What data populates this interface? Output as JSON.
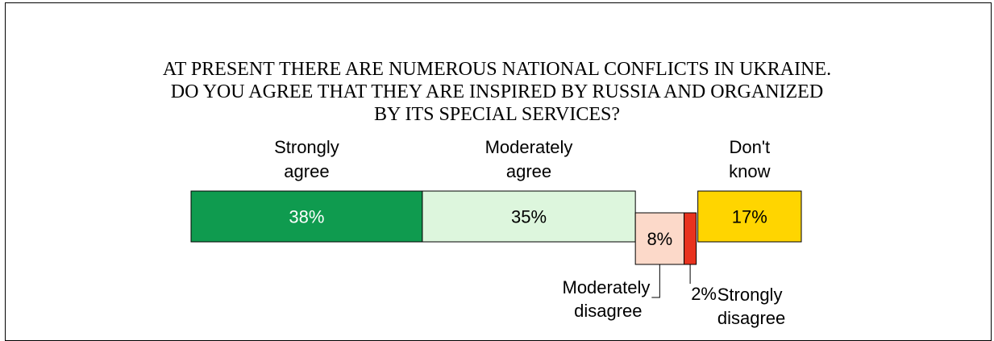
{
  "title_lines": [
    "AT PRESENT THERE ARE NUMEROUS NATIONAL CONFLICTS IN UKRAINE.",
    "DO YOU AGREE THAT THEY ARE INSPIRED BY RUSSIA AND ORGANIZED",
    "BY ITS SPECIAL SERVICES?"
  ],
  "chart_data": {
    "type": "bar",
    "orientation": "horizontal-stacked",
    "title": "AT PRESENT THERE ARE NUMEROUS NATIONAL CONFLICTS IN UKRAINE. DO YOU AGREE THAT THEY ARE INSPIRED BY RUSSIA AND ORGANIZED BY ITS SPECIAL SERVICES?",
    "unit": "%",
    "categories": [
      "Strongly agree",
      "Moderately agree",
      "Moderately disagree",
      "Strongly disagree",
      "Don't know"
    ],
    "values": [
      38,
      35,
      8,
      2,
      17
    ],
    "segments": [
      {
        "category_lines": [
          "Strongly",
          "agree"
        ],
        "value": 38,
        "value_label": "38%",
        "color": "#0f9b4f",
        "label_color": "#ffffff",
        "label_position": "above"
      },
      {
        "category_lines": [
          "Moderately",
          "agree"
        ],
        "value": 35,
        "value_label": "35%",
        "color": "#ddf6dd",
        "label_color": "#000000",
        "label_position": "above"
      },
      {
        "category_lines": [
          "Moderately",
          "disagree"
        ],
        "value": 8,
        "value_label": "8%",
        "color": "#fcd9c9",
        "label_color": "#000000",
        "label_position": "below-left"
      },
      {
        "category_lines": [
          "Strongly",
          "disagree"
        ],
        "value": 2,
        "value_label": "2%",
        "color": "#e8331f",
        "label_color": "#000000",
        "label_position": "below-right"
      },
      {
        "category_lines": [
          "Don't",
          "know"
        ],
        "value": 17,
        "value_label": "17%",
        "color": "#ffd500",
        "label_color": "#000000",
        "label_position": "above"
      }
    ]
  }
}
